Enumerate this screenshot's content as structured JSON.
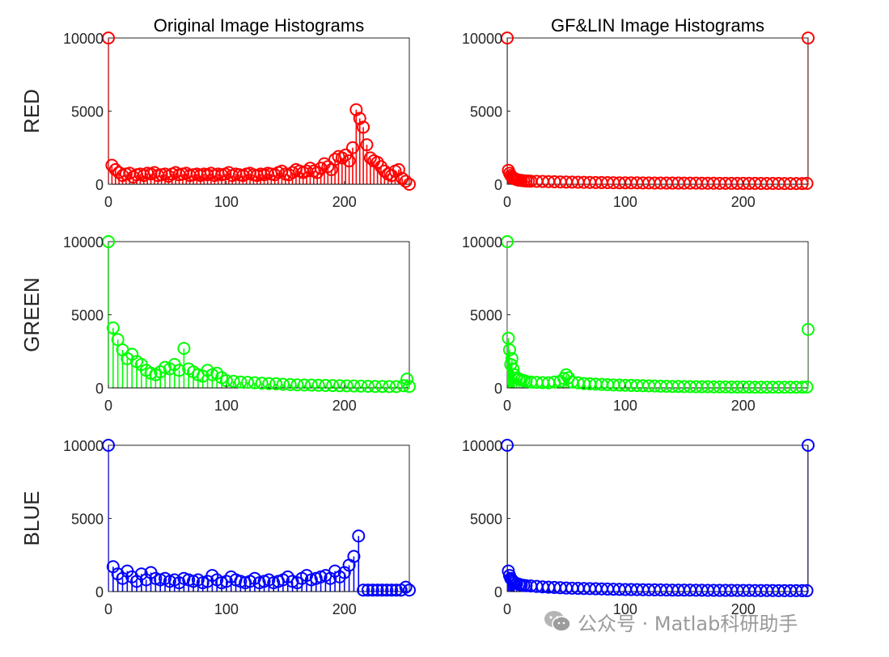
{
  "chart_data": [
    {
      "type": "stem",
      "panel": "original-red",
      "title": "Original Image Histograms",
      "row_label": "RED",
      "color": "#ff0000",
      "xlim": [
        0,
        255
      ],
      "ylim": [
        0,
        10000
      ],
      "xticks": [
        0,
        100,
        200
      ],
      "yticks": [
        0,
        5000,
        10000
      ],
      "x": [
        0,
        3,
        6,
        9,
        12,
        15,
        18,
        21,
        24,
        27,
        30,
        33,
        36,
        39,
        42,
        45,
        48,
        51,
        54,
        57,
        60,
        63,
        66,
        69,
        72,
        75,
        78,
        81,
        84,
        87,
        90,
        93,
        96,
        99,
        102,
        105,
        108,
        111,
        114,
        117,
        120,
        123,
        126,
        129,
        132,
        135,
        138,
        141,
        144,
        147,
        150,
        153,
        156,
        159,
        162,
        165,
        168,
        171,
        174,
        177,
        180,
        183,
        186,
        189,
        192,
        195,
        198,
        201,
        204,
        207,
        210,
        213,
        216,
        219,
        222,
        225,
        228,
        231,
        234,
        237,
        240,
        243,
        246,
        249,
        252,
        255
      ],
      "y": [
        10000,
        1300,
        1000,
        800,
        600,
        700,
        750,
        500,
        650,
        700,
        600,
        750,
        700,
        800,
        600,
        650,
        700,
        550,
        700,
        800,
        650,
        700,
        750,
        600,
        650,
        700,
        600,
        700,
        650,
        750,
        600,
        700,
        650,
        700,
        800,
        600,
        700,
        650,
        600,
        700,
        750,
        650,
        600,
        700,
        650,
        750,
        700,
        650,
        800,
        900,
        700,
        650,
        800,
        1000,
        900,
        800,
        900,
        1100,
        900,
        800,
        1100,
        1400,
        1200,
        1000,
        1700,
        1900,
        1800,
        2000,
        1600,
        2500,
        5100,
        4500,
        3900,
        2700,
        1800,
        1600,
        1500,
        1200,
        900,
        700,
        600,
        900,
        1000,
        400,
        200,
        0
      ]
    },
    {
      "type": "stem",
      "panel": "gflin-red",
      "title": "GF&LIN Image Histograms",
      "color": "#ff0000",
      "xlim": [
        0,
        255
      ],
      "ylim": [
        0,
        10000
      ],
      "xticks": [
        0,
        100,
        200
      ],
      "yticks": [
        0,
        5000,
        10000
      ],
      "x": [
        0,
        1,
        2,
        3,
        4,
        5,
        6,
        7,
        8,
        9,
        10,
        12,
        14,
        16,
        18,
        20,
        25,
        30,
        35,
        40,
        45,
        50,
        55,
        60,
        65,
        70,
        75,
        80,
        85,
        90,
        95,
        100,
        105,
        110,
        115,
        120,
        125,
        130,
        135,
        140,
        145,
        150,
        155,
        160,
        165,
        170,
        175,
        180,
        185,
        190,
        195,
        200,
        205,
        210,
        215,
        220,
        225,
        230,
        235,
        240,
        245,
        250,
        254,
        255
      ],
      "y": [
        10000,
        950,
        750,
        600,
        500,
        450,
        400,
        350,
        320,
        300,
        280,
        260,
        240,
        230,
        220,
        210,
        200,
        190,
        180,
        170,
        160,
        150,
        145,
        140,
        130,
        125,
        120,
        115,
        110,
        105,
        100,
        100,
        95,
        95,
        90,
        90,
        85,
        85,
        80,
        80,
        80,
        75,
        75,
        75,
        70,
        70,
        70,
        65,
        65,
        65,
        60,
        60,
        60,
        60,
        55,
        55,
        55,
        55,
        50,
        50,
        50,
        50,
        60,
        10000
      ]
    },
    {
      "type": "stem",
      "panel": "original-green",
      "row_label": "GREEN",
      "color": "#00ff00",
      "xlim": [
        0,
        255
      ],
      "ylim": [
        0,
        10000
      ],
      "xticks": [
        0,
        100,
        200
      ],
      "yticks": [
        0,
        5000,
        10000
      ],
      "x": [
        0,
        4,
        8,
        12,
        16,
        20,
        24,
        28,
        32,
        36,
        40,
        44,
        48,
        52,
        56,
        60,
        64,
        68,
        72,
        76,
        80,
        84,
        88,
        92,
        96,
        100,
        106,
        112,
        118,
        124,
        130,
        136,
        142,
        148,
        154,
        160,
        166,
        172,
        178,
        184,
        190,
        196,
        202,
        208,
        214,
        220,
        226,
        232,
        238,
        244,
        250,
        253,
        255
      ],
      "y": [
        10000,
        4100,
        3300,
        2600,
        2000,
        2300,
        1800,
        1600,
        1200,
        1000,
        900,
        1100,
        1400,
        1300,
        1600,
        1200,
        2700,
        1300,
        1100,
        900,
        800,
        1200,
        900,
        1000,
        700,
        500,
        450,
        400,
        380,
        350,
        320,
        300,
        280,
        250,
        230,
        210,
        200,
        190,
        180,
        170,
        160,
        150,
        140,
        130,
        120,
        110,
        100,
        100,
        90,
        90,
        150,
        600,
        100
      ]
    },
    {
      "type": "stem",
      "panel": "gflin-green",
      "color": "#00ff00",
      "xlim": [
        0,
        255
      ],
      "ylim": [
        0,
        10000
      ],
      "xticks": [
        0,
        100,
        200
      ],
      "yticks": [
        0,
        5000,
        10000
      ],
      "x": [
        0,
        1,
        2,
        3,
        4,
        5,
        6,
        8,
        10,
        12,
        14,
        16,
        20,
        25,
        30,
        35,
        40,
        45,
        48,
        50,
        52,
        55,
        60,
        65,
        70,
        75,
        80,
        85,
        90,
        95,
        100,
        105,
        110,
        115,
        120,
        125,
        130,
        135,
        140,
        145,
        150,
        155,
        160,
        165,
        170,
        175,
        180,
        185,
        190,
        195,
        200,
        205,
        210,
        215,
        220,
        225,
        230,
        235,
        240,
        245,
        250,
        254,
        255
      ],
      "y": [
        10000,
        3400,
        2600,
        1600,
        2000,
        1300,
        900,
        700,
        600,
        550,
        500,
        450,
        400,
        380,
        360,
        350,
        400,
        450,
        650,
        900,
        700,
        400,
        350,
        300,
        280,
        260,
        240,
        220,
        200,
        190,
        180,
        170,
        160,
        150,
        140,
        130,
        120,
        110,
        100,
        100,
        90,
        90,
        80,
        80,
        80,
        70,
        70,
        70,
        60,
        60,
        60,
        60,
        50,
        50,
        50,
        50,
        50,
        50,
        50,
        50,
        50,
        60,
        4000
      ]
    },
    {
      "type": "stem",
      "panel": "original-blue",
      "row_label": "BLUE",
      "color": "#0000ff",
      "xlim": [
        0,
        255
      ],
      "ylim": [
        0,
        10000
      ],
      "xticks": [
        0,
        100,
        200
      ],
      "yticks": [
        0,
        5000,
        10000
      ],
      "x": [
        0,
        4,
        8,
        12,
        16,
        20,
        24,
        28,
        32,
        36,
        40,
        44,
        48,
        52,
        56,
        60,
        64,
        68,
        72,
        76,
        80,
        84,
        88,
        92,
        96,
        100,
        104,
        108,
        112,
        116,
        120,
        124,
        128,
        132,
        136,
        140,
        144,
        148,
        152,
        156,
        160,
        164,
        168,
        172,
        176,
        180,
        184,
        188,
        192,
        196,
        200,
        204,
        208,
        212,
        216,
        220,
        224,
        228,
        232,
        236,
        240,
        244,
        248,
        252,
        255
      ],
      "y": [
        10000,
        1700,
        1200,
        900,
        1400,
        1000,
        700,
        1200,
        800,
        1300,
        900,
        800,
        900,
        700,
        800,
        600,
        900,
        800,
        700,
        800,
        600,
        700,
        1100,
        800,
        600,
        700,
        1000,
        800,
        700,
        600,
        700,
        900,
        600,
        700,
        800,
        600,
        700,
        800,
        1000,
        700,
        600,
        900,
        1100,
        800,
        900,
        1000,
        1100,
        900,
        1400,
        1000,
        1300,
        1800,
        2400,
        3800,
        100,
        100,
        100,
        100,
        100,
        100,
        100,
        100,
        100,
        300,
        100
      ]
    },
    {
      "type": "stem",
      "panel": "gflin-blue",
      "color": "#0000ff",
      "xlim": [
        0,
        255
      ],
      "ylim": [
        0,
        10000
      ],
      "xticks": [
        0,
        100,
        200
      ],
      "yticks": [
        0,
        5000,
        10000
      ],
      "x": [
        0,
        1,
        2,
        3,
        4,
        5,
        6,
        8,
        10,
        12,
        14,
        16,
        20,
        25,
        30,
        35,
        40,
        45,
        50,
        55,
        60,
        65,
        70,
        75,
        80,
        85,
        90,
        95,
        100,
        105,
        110,
        115,
        120,
        125,
        130,
        135,
        140,
        145,
        150,
        155,
        160,
        165,
        170,
        175,
        180,
        185,
        190,
        195,
        200,
        205,
        210,
        215,
        220,
        225,
        230,
        235,
        240,
        245,
        250,
        254,
        255
      ],
      "y": [
        10000,
        1400,
        1100,
        900,
        800,
        700,
        600,
        550,
        500,
        450,
        420,
        400,
        380,
        350,
        320,
        300,
        280,
        260,
        240,
        230,
        220,
        210,
        200,
        190,
        180,
        170,
        160,
        150,
        140,
        135,
        130,
        125,
        120,
        115,
        110,
        105,
        100,
        100,
        95,
        95,
        90,
        90,
        85,
        85,
        80,
        80,
        80,
        75,
        75,
        75,
        70,
        70,
        70,
        70,
        65,
        65,
        65,
        65,
        60,
        60,
        10000
      ]
    }
  ],
  "watermark": {
    "text": "公众号 · Matlab科研助手",
    "color": "#9a9a9a"
  }
}
